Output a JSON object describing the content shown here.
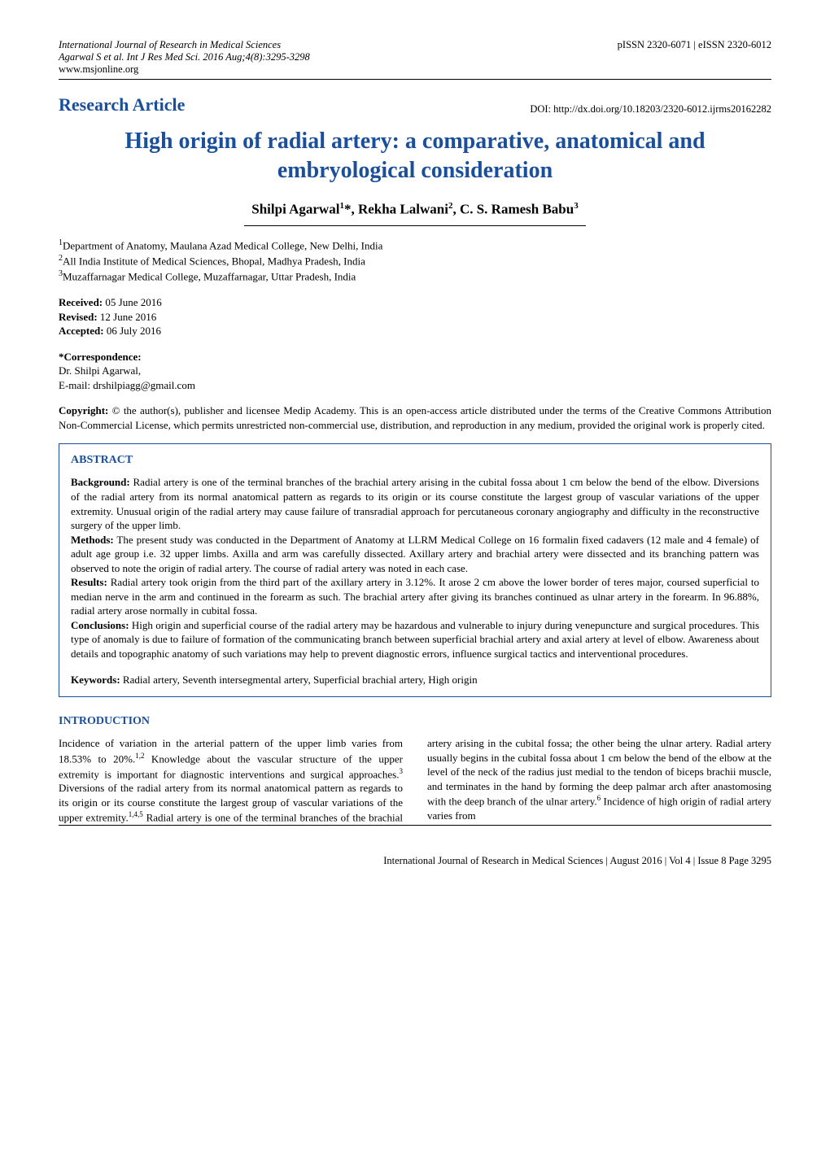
{
  "header": {
    "journal_line1": "International Journal of Research in Medical Sciences",
    "journal_line2": "Agarwal S et al. Int J Res Med Sci. 2016 Aug;4(8):3295-3298",
    "website": "www.msjonline.org",
    "issn": "pISSN 2320-6071 | eISSN 2320-6012"
  },
  "doi": "DOI: http://dx.doi.org/10.18203/2320-6012.ijrms20162282",
  "article_type": "Research Article",
  "title": "High origin of radial artery: a comparative, anatomical and embryological consideration",
  "authors_html": "Shilpi Agarwal<sup>1</sup>*, Rekha Lalwani<sup>2</sup>, C. S. Ramesh Babu<sup>3</sup>",
  "affiliations": [
    "Department of Anatomy, Maulana Azad Medical College, New Delhi, India",
    "All India Institute of Medical Sciences, Bhopal, Madhya Pradesh, India",
    "Muzaffarnagar Medical College, Muzaffarnagar, Uttar Pradesh, India"
  ],
  "dates": {
    "received_label": "Received:",
    "received": "05 June 2016",
    "revised_label": "Revised:",
    "revised": "12 June 2016",
    "accepted_label": "Accepted:",
    "accepted": "06 July 2016"
  },
  "correspondence": {
    "label": "*Correspondence:",
    "name": "Dr. Shilpi Agarwal,",
    "email": "E-mail: drshilpiagg@gmail.com"
  },
  "copyright": "Copyright: © the author(s), publisher and licensee Medip Academy. This is an open-access article distributed under the terms of the Creative Commons Attribution Non-Commercial License, which permits unrestricted non-commercial use, distribution, and reproduction in any medium, provided the original work is properly cited.",
  "abstract": {
    "heading": "ABSTRACT",
    "background_label": "Background:",
    "background": "Radial artery is one of the terminal branches of the brachial artery arising in the cubital fossa about 1 cm below the bend of the elbow. Diversions of the radial artery from its normal anatomical pattern as regards to its origin or its course constitute the largest group of vascular variations of the upper extremity. Unusual origin of the radial artery may cause failure of transradial approach for percutaneous coronary angiography and difficulty in the reconstructive surgery of the upper limb.",
    "methods_label": "Methods:",
    "methods": "The present study was conducted in the Department of Anatomy at LLRM Medical College on 16 formalin fixed cadavers (12 male and 4 female) of adult age group i.e. 32 upper limbs. Axilla and arm was carefully dissected. Axillary artery and brachial artery were dissected and its branching pattern was observed to note the origin of radial artery. The course of radial artery was noted in each case.",
    "results_label": "Results:",
    "results": "Radial artery took origin from the third part of the axillary artery in 3.12%. It arose 2 cm above the lower border of teres major, coursed superficial to median nerve in the arm and continued in the forearm as such. The brachial artery after giving its branches continued as ulnar artery in the forearm. In 96.88%, radial artery arose normally in cubital fossa.",
    "conclusions_label": "Conclusions:",
    "conclusions": "High origin and superficial course of the radial artery may be hazardous and vulnerable to injury during venepuncture and surgical procedures. This type of anomaly is due to failure of formation of the communicating branch between superficial brachial artery and axial artery at level of elbow. Awareness about details and topographic anatomy of such variations may help to prevent diagnostic errors, influence surgical tactics and interventional procedures.",
    "keywords_label": "Keywords:",
    "keywords": "Radial artery, Seventh intersegmental artery, Superficial brachial artery, High origin"
  },
  "introduction": {
    "heading": "INTRODUCTION",
    "body_html": "Incidence of variation in the arterial pattern of the upper limb varies from 18.53% to 20%.<sup>1,2</sup> Knowledge about the vascular structure of the upper extremity is important for diagnostic interventions and surgical approaches.<sup>3</sup> Diversions of the radial artery from its normal anatomical pattern as regards to its origin or its course constitute the largest group of vascular variations of the upper extremity.<sup>1,4,5</sup> Radial artery is one of the terminal branches of the brachial artery arising in the cubital fossa; the other being the ulnar artery. Radial artery usually begins in the cubital fossa about 1 cm below the bend of the elbow at the level of the neck of the radius just medial to the tendon of biceps brachii muscle, and terminates in the hand by forming the deep palmar arch after anastomosing with the deep branch of the ulnar artery.<sup>6</sup> Incidence of high origin of radial artery varies from"
  },
  "footer": "International Journal of Research in Medical Sciences | August 2016 | Vol 4 | Issue 8    Page 3295",
  "colors": {
    "accent": "#1a4f9c",
    "text": "#000000",
    "background": "#ffffff"
  }
}
